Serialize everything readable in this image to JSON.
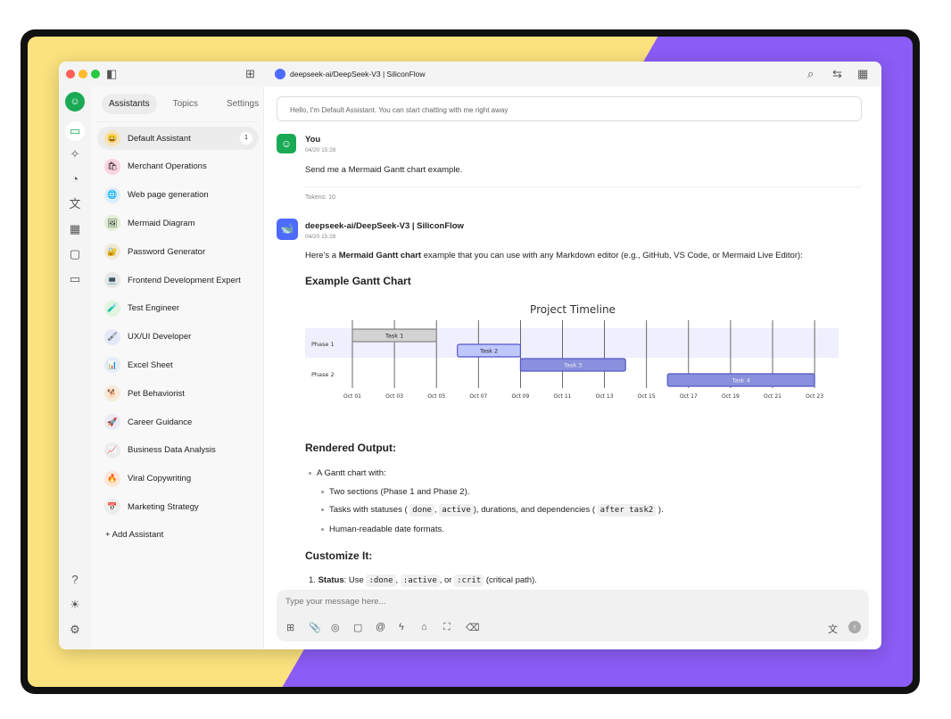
{
  "window": {
    "title": "deepseek-ai/DeepSeek-V3 | SiliconFlow"
  },
  "sidebar": {
    "tabs": [
      "Assistants",
      "Topics",
      "Settings"
    ],
    "items": [
      {
        "label": "Default Assistant",
        "emoji": "😀",
        "badge": "1",
        "color": "#f6e3b8"
      },
      {
        "label": "Merchant Operations",
        "emoji": "🛍",
        "color": "#fbd3df"
      },
      {
        "label": "Web page generation",
        "emoji": "🌐",
        "color": "#dceefa"
      },
      {
        "label": "Mermaid Diagram",
        "emoji": "🖼",
        "color": "#e2efd4"
      },
      {
        "label": "Password Generator",
        "emoji": "🔐",
        "color": "#f0ead8"
      },
      {
        "label": "Frontend Development Expert",
        "emoji": "💻",
        "color": "#e8e8e8"
      },
      {
        "label": "Test Engineer",
        "emoji": "🧪",
        "color": "#e2f3e0"
      },
      {
        "label": "UX/UI Developer",
        "emoji": "🖌",
        "color": "#e4e8f8"
      },
      {
        "label": "Excel Sheet",
        "emoji": "📊",
        "color": "#e4ecf8"
      },
      {
        "label": "Pet Behaviorist",
        "emoji": "🐕",
        "color": "#f6ead8"
      },
      {
        "label": "Career Guidance",
        "emoji": "🚀",
        "color": "#ece8f4"
      },
      {
        "label": "Business Data Analysis",
        "emoji": "📈",
        "color": "#ececec"
      },
      {
        "label": "Viral Copywriting",
        "emoji": "🔥",
        "color": "#fde6d8"
      },
      {
        "label": "Marketing Strategy",
        "emoji": "📅",
        "color": "#ececec"
      }
    ],
    "add_label": "+ Add Assistant"
  },
  "chat": {
    "hello": "Hello, I'm Default Assistant. You can start chatting with me right away",
    "user": {
      "name": "You",
      "time": "04/20 15:28",
      "text": "Send me a Mermaid Gantt chart example.",
      "tokens": "Tokens: 10"
    },
    "bot": {
      "name": "deepseek-ai/DeepSeek-V3 | SiliconFlow",
      "time": "04/20 15:28",
      "intro_pre": "Here's a ",
      "intro_bold": "Mermaid Gantt chart",
      "intro_post": " example that you can use with any Markdown editor (e.g., GitHub, VS Code, or Mermaid Live Editor):",
      "h1": "Example Gantt Chart",
      "h2": "Rendered Output:",
      "h3": "Customize It:",
      "b1": "A Gantt chart with:",
      "b2": "Two sections (Phase 1 and Phase 2).",
      "b3_pre": "Tasks with statuses (",
      "b3_c1": "done",
      "b3_c2": "active",
      "b3_mid": "), durations, and dependencies (",
      "b3_c3": "after task2",
      "b3_post": ").",
      "b4": "Human-readable date formats.",
      "n1_num": "1.",
      "n1_bold": "Status",
      "n1_pre": ": Use ",
      "n1_c1": ":done",
      "n1_c2": ":active",
      "n1_or": ", or ",
      "n1_c3": ":crit",
      "n1_post": " (critical path)."
    }
  },
  "input": {
    "placeholder": "Type your message here..."
  },
  "chart_data": {
    "type": "gantt",
    "title": "Project Timeline",
    "sections": [
      "Phase 1",
      "Phase 2"
    ],
    "tasks": [
      {
        "name": "Task 1",
        "section": "Phase 1",
        "start": "2023-10-01",
        "end": "2023-10-05",
        "status": "done"
      },
      {
        "name": "Task 2",
        "section": "Phase 1",
        "start": "2023-10-06",
        "end": "2023-10-09",
        "status": "active"
      },
      {
        "name": "Task 3",
        "section": "Phase 2",
        "start": "2023-10-09",
        "end": "2023-10-14",
        "status": ""
      },
      {
        "name": "Task 4",
        "section": "Phase 2",
        "start": "2023-10-16",
        "end": "2023-10-23",
        "status": ""
      }
    ],
    "ticks": [
      "Oct 01",
      "Oct 03",
      "Oct 05",
      "Oct 07",
      "Oct 09",
      "Oct 11",
      "Oct 13",
      "Oct 15",
      "Oct 17",
      "Oct 19",
      "Oct 21",
      "Oct 23"
    ],
    "colors": {
      "done": "#d3d3d3",
      "active": "#bfc7ff",
      "default": "#8a90dd",
      "section1": "#efeffd"
    }
  }
}
